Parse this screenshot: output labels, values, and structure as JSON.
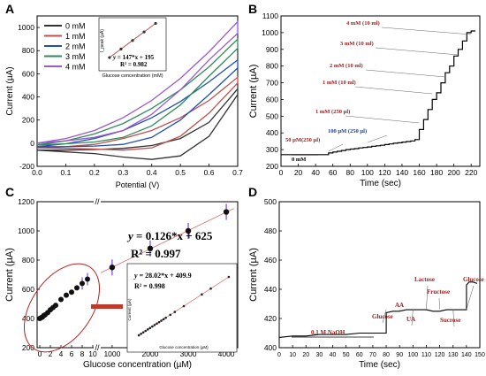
{
  "panels": [
    {
      "letter": "A",
      "type": "line",
      "xlabel": "Potential (V)",
      "ylabel": "Current (µA)",
      "xlim": [
        0.0,
        0.7
      ],
      "ylim": [
        -200,
        1100
      ],
      "xticks": [
        "0.0",
        "0.1",
        "0.2",
        "0.3",
        "0.4",
        "0.5",
        "0.6",
        "0.7"
      ],
      "yticks": [
        "-200",
        "0",
        "200",
        "400",
        "600",
        "800",
        "1000"
      ],
      "legend": [
        "0 mM",
        "1 mM",
        "2 mM",
        "3 mM",
        "4 mM"
      ],
      "colors": [
        "#333333",
        "#c0504d",
        "#1f4fb5",
        "#2e8b57",
        "#9b59d0"
      ],
      "series_forward": [
        {
          "name": "0 mM",
          "x": [
            0.0,
            0.1,
            0.2,
            0.3,
            0.4,
            0.5,
            0.6,
            0.7
          ],
          "y": [
            -60,
            -60,
            -55,
            -45,
            -20,
            40,
            180,
            470
          ]
        },
        {
          "name": "1 mM",
          "x": [
            0.0,
            0.1,
            0.2,
            0.3,
            0.4,
            0.5,
            0.6,
            0.7
          ],
          "y": [
            -40,
            -30,
            -10,
            40,
            110,
            220,
            370,
            570
          ]
        },
        {
          "name": "2 mM",
          "x": [
            0.0,
            0.1,
            0.2,
            0.3,
            0.4,
            0.5,
            0.6,
            0.7
          ],
          "y": [
            -30,
            -5,
            40,
            110,
            220,
            360,
            530,
            720
          ]
        },
        {
          "name": "3 mM",
          "x": [
            0.0,
            0.1,
            0.2,
            0.3,
            0.4,
            0.5,
            0.6,
            0.7
          ],
          "y": [
            -15,
            20,
            80,
            170,
            300,
            460,
            660,
            900
          ]
        },
        {
          "name": "4 mM",
          "x": [
            0.0,
            0.1,
            0.2,
            0.3,
            0.4,
            0.5,
            0.6,
            0.7
          ],
          "y": [
            0,
            40,
            110,
            220,
            370,
            560,
            790,
            1050
          ]
        }
      ],
      "series_reverse": [
        {
          "name": "0 mM",
          "x": [
            0.7,
            0.6,
            0.5,
            0.4,
            0.3,
            0.2,
            0.1,
            0.0
          ],
          "y": [
            420,
            60,
            -110,
            -140,
            -120,
            -90,
            -75,
            -60
          ]
        },
        {
          "name": "1 mM",
          "x": [
            0.7,
            0.6,
            0.5,
            0.4,
            0.3,
            0.2,
            0.1,
            0.0
          ],
          "y": [
            520,
            260,
            60,
            -40,
            -60,
            -50,
            -45,
            -40
          ]
        },
        {
          "name": "2 mM",
          "x": [
            0.7,
            0.6,
            0.5,
            0.4,
            0.3,
            0.2,
            0.1,
            0.0
          ],
          "y": [
            650,
            420,
            200,
            50,
            -10,
            -25,
            -30,
            -30
          ]
        },
        {
          "name": "3 mM",
          "x": [
            0.7,
            0.6,
            0.5,
            0.4,
            0.3,
            0.2,
            0.1,
            0.0
          ],
          "y": [
            820,
            580,
            330,
            150,
            50,
            10,
            -5,
            -15
          ]
        },
        {
          "name": "4 mM",
          "x": [
            0.7,
            0.6,
            0.5,
            0.4,
            0.3,
            0.2,
            0.1,
            0.0
          ],
          "y": [
            950,
            720,
            460,
            250,
            110,
            50,
            20,
            0
          ]
        }
      ],
      "inset": {
        "equation_lhs": "y",
        "equation_rhs": " = 147*x + 195",
        "r2": "R² = 0.982",
        "xlabel": "Glucose concentration (mM)",
        "ylabel": "I_peak (µA)",
        "x": [
          0,
          1,
          2,
          3,
          4
        ],
        "y": [
          195,
          342,
          489,
          636,
          783
        ]
      }
    },
    {
      "letter": "B",
      "type": "line",
      "xlabel": "Time (sec)",
      "ylabel": "Current (µA)",
      "xlim": [
        0,
        230
      ],
      "ylim": [
        200,
        1100
      ],
      "xticks": [
        "0",
        "20",
        "40",
        "60",
        "80",
        "100",
        "120",
        "140",
        "160",
        "180",
        "200",
        "220"
      ],
      "yticks": [
        "200",
        "300",
        "400",
        "500",
        "600",
        "700",
        "800",
        "900",
        "1000",
        "1100"
      ],
      "color": "#000000",
      "x": [
        0,
        50,
        55,
        60,
        65,
        70,
        75,
        80,
        85,
        90,
        95,
        100,
        105,
        110,
        115,
        120,
        125,
        130,
        135,
        140,
        145,
        150,
        155,
        160,
        165,
        170,
        175,
        180,
        185,
        190,
        195,
        200,
        205,
        210,
        215,
        220,
        225
      ],
      "y": [
        270,
        270,
        280,
        285,
        290,
        295,
        300,
        303,
        306,
        310,
        313,
        316,
        320,
        323,
        326,
        330,
        334,
        338,
        341,
        345,
        348,
        352,
        360,
        420,
        480,
        540,
        600,
        640,
        700,
        760,
        800,
        860,
        900,
        950,
        1000,
        1010,
        1010
      ],
      "annotations": [
        {
          "text": "0 mM",
          "color": "#000000"
        },
        {
          "text": "50 µM(250 µl)",
          "color": "#9b1c1c"
        },
        {
          "text": "100 µM (250 µl)",
          "color": "#1f3f8f"
        },
        {
          "text": "1 mM (250 µl)",
          "color": "#9b1c1c"
        },
        {
          "text": "1 mM (10 ml)",
          "color": "#9b1c1c"
        },
        {
          "text": "2 mM (10 ml)",
          "color": "#9b1c1c"
        },
        {
          "text": "3 mM (10 ml)",
          "color": "#9b1c1c"
        },
        {
          "text": "4 mM (10 ml)",
          "color": "#9b1c1c"
        }
      ]
    },
    {
      "letter": "C",
      "type": "scatter",
      "xlabel": "Glucose concentration (µM)",
      "ylabel": "Current (µA)",
      "ylim": [
        200,
        1200
      ],
      "yticks": [
        "200",
        "400",
        "600",
        "800",
        "1000",
        "1200"
      ],
      "xticks_left": [
        "0",
        "2",
        "4",
        "6",
        "8",
        "10"
      ],
      "xticks_right": [
        "1000",
        "2000",
        "3000",
        "4000"
      ],
      "axis_break": "//",
      "low_x": [
        0,
        0.25,
        0.5,
        0.75,
        1,
        1.5,
        2,
        2.5,
        3,
        4,
        5,
        6,
        7,
        8,
        9
      ],
      "low_y": [
        400,
        405,
        410,
        420,
        425,
        440,
        460,
        475,
        490,
        530,
        560,
        580,
        610,
        640,
        670
      ],
      "high_x": [
        1000,
        2000,
        3000,
        4000
      ],
      "high_y": [
        750,
        880,
        1000,
        1130
      ],
      "equation_lhs": "y",
      "equation_rhs": " = 0.126*x + 625",
      "r2": "R² = 0.997",
      "inset": {
        "equation_lhs": "y",
        "equation_rhs": " = 28.02*x + 409.9",
        "r2": "R² = 0.998",
        "xlabel": "Glucose concentration (µM)",
        "ylabel": "Current (µA)",
        "x": [
          0,
          0.25,
          0.5,
          0.75,
          1,
          1.25,
          1.5,
          1.75,
          2,
          2.25,
          2.5,
          2.75,
          3,
          3.5,
          4,
          5,
          7,
          8,
          10
        ],
        "y": [
          410,
          417,
          424,
          431,
          438,
          445,
          452,
          459,
          466,
          473,
          480,
          487,
          494,
          508,
          522,
          550,
          606,
          634,
          690
        ]
      },
      "colors": {
        "marker": "#111111",
        "fit": "#e06a6a",
        "errorbar": "#7b3fe0",
        "ellipse": "#b22222"
      }
    },
    {
      "letter": "D",
      "type": "line",
      "xlabel": "Time (sec)",
      "ylabel": "Current (µA)",
      "xlim": [
        0,
        150
      ],
      "ylim": [
        400,
        500
      ],
      "xticks": [
        "0",
        "10",
        "20",
        "30",
        "40",
        "50",
        "60",
        "70",
        "80",
        "90",
        "100",
        "110",
        "120",
        "130",
        "140",
        "150"
      ],
      "yticks": [
        "400",
        "420",
        "440",
        "460",
        "480",
        "500"
      ],
      "color": "#000000",
      "x": [
        0,
        10,
        20,
        30,
        40,
        50,
        60,
        70,
        78,
        80,
        85,
        90,
        95,
        100,
        105,
        110,
        115,
        120,
        125,
        130,
        135,
        140,
        142,
        145,
        148
      ],
      "y": [
        407,
        408,
        408,
        409,
        409,
        409,
        410,
        410,
        410,
        424,
        425,
        425,
        426,
        426,
        426,
        426,
        425,
        425,
        426,
        426,
        426,
        443,
        445,
        445,
        444
      ],
      "annotations": [
        {
          "text": "0.1 M NaOH"
        },
        {
          "text": "Glucose"
        },
        {
          "text": "AA"
        },
        {
          "text": "UA"
        },
        {
          "text": "Lactose"
        },
        {
          "text": "Fructose"
        },
        {
          "text": "Sucrose"
        },
        {
          "text": "Glucose"
        }
      ],
      "annotation_color": "#9b1c1c"
    }
  ]
}
